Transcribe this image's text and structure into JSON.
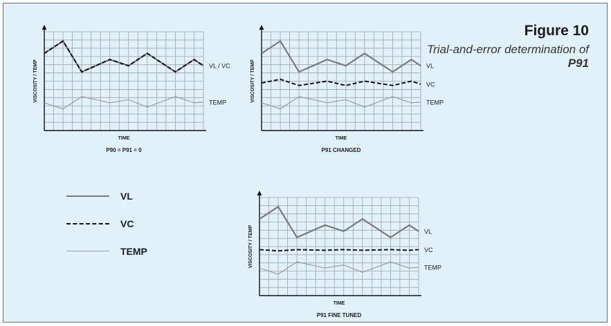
{
  "figure": {
    "title": "Figure 10",
    "subtitle": "Trial-and-error determination of",
    "parameter": "P91"
  },
  "legend": [
    {
      "label": "VL",
      "style": "solid-dark",
      "color": "#7a7a7a"
    },
    {
      "label": "VC",
      "style": "dashed",
      "color": "#111111"
    },
    {
      "label": "TEMP",
      "style": "solid-light",
      "color": "#9a9a9a"
    }
  ],
  "colors": {
    "background": "#e1f1fa",
    "grid_line": "#9fa3a6",
    "vl": "#7a7a7a",
    "vc": "#111111",
    "temp": "#9a9a9a",
    "axis": "#111111"
  },
  "chart_data": [
    {
      "type": "line",
      "caption": "P90 = P91 = 0",
      "xlabel": "TIME",
      "ylabel": "VISCOSITY / TEMP",
      "grid": true,
      "x": [
        0,
        2,
        4,
        7,
        9,
        11,
        14,
        16,
        17
      ],
      "series": [
        {
          "name": "VL / VC",
          "style": "dashed-over-solid",
          "values": [
            12.5,
            14.5,
            9.5,
            11.5,
            10.5,
            12.5,
            9.5,
            11.5,
            10.5
          ]
        },
        {
          "name": "TEMP",
          "style": "solid-light",
          "values": [
            4.5,
            3.5,
            5.5,
            4.5,
            5,
            3.8,
            5.5,
            4.5,
            4.6
          ]
        }
      ]
    },
    {
      "type": "line",
      "caption": "P91 CHANGED",
      "xlabel": "TIME",
      "ylabel": "VISCOSITY / TEMP",
      "grid": true,
      "x": [
        0,
        2,
        4,
        7,
        9,
        11,
        14,
        16,
        17
      ],
      "series": [
        {
          "name": "VL",
          "style": "solid-dark",
          "values": [
            12.5,
            14.5,
            9.5,
            11.5,
            10.5,
            12.5,
            9.5,
            11.5,
            10.5
          ]
        },
        {
          "name": "VC",
          "style": "dashed",
          "values": [
            7.7,
            8.3,
            7.3,
            8,
            7.3,
            8,
            7.3,
            8,
            7.5
          ]
        },
        {
          "name": "TEMP",
          "style": "solid-light",
          "values": [
            4.5,
            3.5,
            5.5,
            4.5,
            5,
            3.8,
            5.5,
            4.5,
            4.6
          ]
        }
      ]
    },
    {
      "type": "line",
      "caption": "P91 FINE TUNED",
      "xlabel": "TIME",
      "ylabel": "VISCOSITY / TEMP",
      "grid": true,
      "x": [
        0,
        2,
        4,
        7,
        9,
        11,
        14,
        16,
        17
      ],
      "series": [
        {
          "name": "VL",
          "style": "solid-dark",
          "values": [
            12.5,
            14.5,
            9.5,
            11.5,
            10.5,
            12.5,
            9.5,
            11.5,
            10.5
          ]
        },
        {
          "name": "VC",
          "style": "dashed",
          "values": [
            7.5,
            7.3,
            7.5,
            7.4,
            7.5,
            7.4,
            7.5,
            7.4,
            7.5
          ]
        },
        {
          "name": "TEMP",
          "style": "solid-light",
          "values": [
            4.5,
            3.5,
            5.5,
            4.5,
            5,
            3.8,
            5.5,
            4.5,
            4.6
          ]
        }
      ]
    }
  ]
}
